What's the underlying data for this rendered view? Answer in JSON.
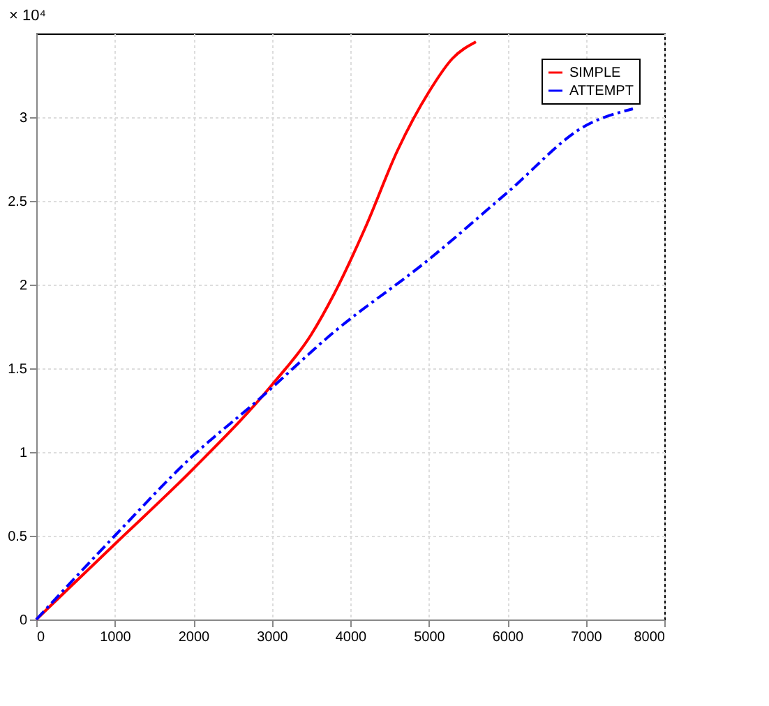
{
  "chart_data": {
    "type": "line",
    "ylabel": "× 10⁴",
    "series": [
      {
        "name": "SIMPLE",
        "color": "#ff0000",
        "line_style": "solid",
        "x": [
          0,
          1000,
          2000,
          3000,
          3500,
          3800,
          4200,
          4600,
          5000,
          5300,
          5600
        ],
        "values": [
          0,
          0.45,
          0.9,
          1.4,
          1.7,
          1.95,
          2.35,
          2.8,
          3.15,
          3.35,
          3.45
        ]
      },
      {
        "name": "ATTEMPT",
        "color": "#0000ff",
        "line_style": "dashed",
        "x": [
          0,
          1000,
          2000,
          2800,
          3800,
          5000,
          6000,
          7000,
          7600
        ],
        "values": [
          0,
          0.5,
          0.98,
          1.3,
          1.72,
          2.15,
          2.55,
          2.95,
          3.05
        ]
      }
    ],
    "xlim": [
      0,
      8000
    ],
    "xticks": [
      0,
      1000,
      2000,
      3000,
      4000,
      5000,
      6000,
      7000,
      8000
    ],
    "ylim": [
      0,
      3.5
    ],
    "yticks": [
      0,
      0.5,
      1,
      1.5,
      2,
      2.5,
      3
    ],
    "grid": true,
    "legend": "top right",
    "marker": "none"
  }
}
